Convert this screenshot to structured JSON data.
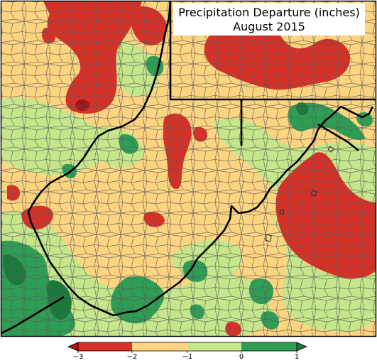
{
  "title": {
    "line1": "Precipitation Departure (inches)",
    "line2": "August 2015"
  },
  "legend": {
    "ticks": [
      "−3",
      "−2",
      "−1",
      "0",
      "1"
    ],
    "bins": [
      {
        "from": -3,
        "to": -2,
        "color": "#d73027"
      },
      {
        "from": -2,
        "to": -1,
        "color": "#fdd47f"
      },
      {
        "from": -1,
        "to": 0,
        "color": "#c5e68a"
      },
      {
        "from": 0,
        "to": 1,
        "color": "#2e9e55"
      }
    ],
    "under_color": "#a50f15",
    "over_color": "#1a7a3c"
  },
  "colors": {
    "very_dry": "#a50f15",
    "dry": "#d73027",
    "slightly_dry": "#fdd47f",
    "near_normal": "#c5e68a",
    "wet": "#2e9e55",
    "very_wet": "#1a7a3c",
    "state_border": "#000000",
    "county_border": "#555555"
  }
}
